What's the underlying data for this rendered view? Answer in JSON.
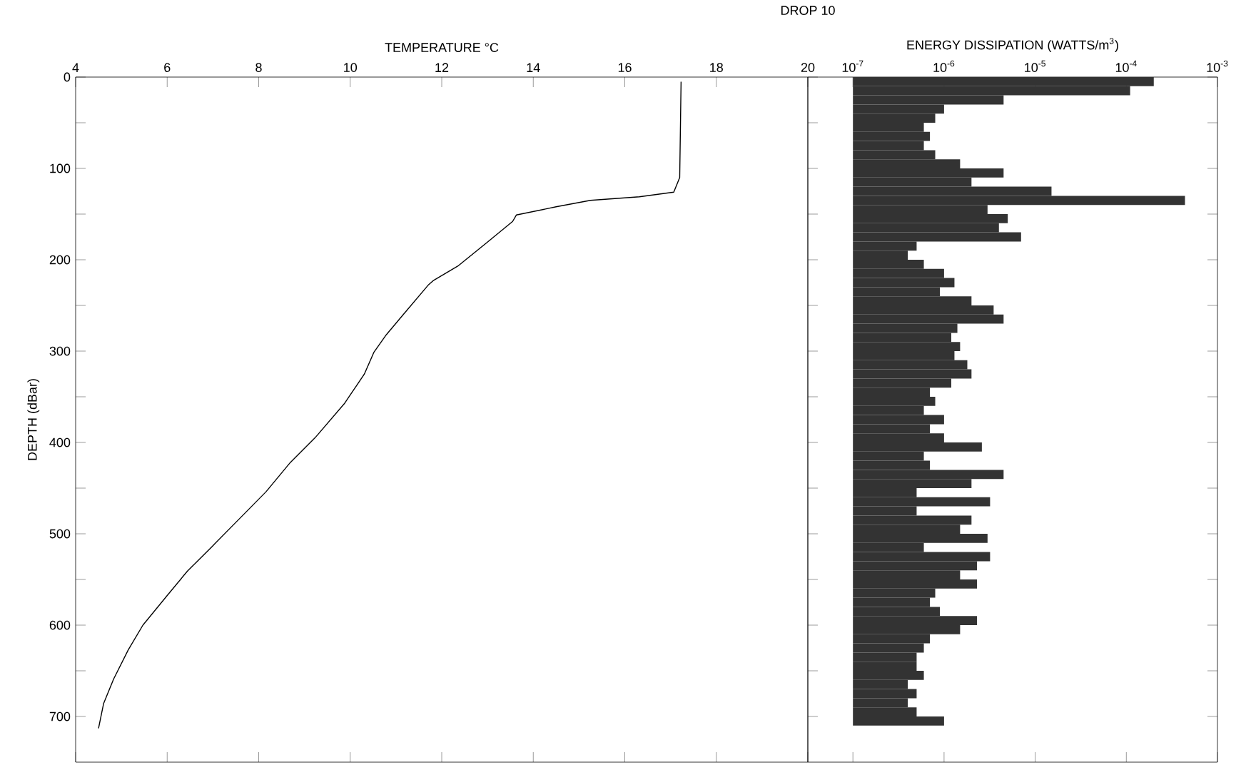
{
  "chart_data": [
    {
      "type": "line",
      "title": "DROP 10",
      "xlabel": "TEMPERATURE °C",
      "ylabel": "DEPTH (dBar)",
      "color": "#000000",
      "x": [
        17.23,
        17.2,
        17.07,
        16.32,
        15.25,
        14.5,
        13.63,
        13.55,
        12.99,
        12.35,
        11.81,
        11.7,
        11.16,
        10.79,
        10.52,
        10.31,
        9.88,
        9.23,
        8.69,
        8.16,
        7.51,
        6.98,
        6.44,
        6.01,
        5.47,
        5.15,
        4.83,
        4.61,
        4.5
      ],
      "values": [
        5,
        110,
        126,
        131,
        135,
        142,
        151,
        158,
        181,
        207,
        223,
        228,
        260,
        282,
        301,
        325,
        357,
        395,
        422,
        454,
        487,
        514,
        541,
        567,
        600,
        627,
        659,
        686,
        713
      ],
      "xlim": [
        4,
        20
      ],
      "xticks": [
        4,
        6,
        8,
        10,
        12,
        14,
        16,
        18,
        20
      ],
      "ylim": [
        750,
        0
      ],
      "yticks": [
        0,
        {
          "value": 50,
          "label": null
        },
        100,
        {
          "value": 150,
          "label": null
        },
        200,
        {
          "value": 250,
          "label": null
        },
        300,
        {
          "value": 350,
          "label": null
        },
        400,
        {
          "value": 450,
          "label": null
        },
        500,
        {
          "value": 550,
          "label": null
        },
        600,
        {
          "value": 650,
          "label": null
        },
        700
      ]
    },
    {
      "type": "bar",
      "orientation": "horizontal",
      "log": "x",
      "tick_labels": "x",
      "xlabel": "ENERGY DISSIPATION (WATTS/m$^{3}$)",
      "color": "#333333",
      "x": [
        5,
        15,
        25,
        35,
        45,
        55,
        65,
        75,
        85,
        95,
        105,
        115,
        125,
        135,
        145,
        155,
        165,
        175,
        185,
        195,
        205,
        215,
        225,
        235,
        245,
        255,
        265,
        275,
        285,
        295,
        305,
        315,
        325,
        335,
        345,
        355,
        365,
        375,
        385,
        395,
        405,
        415,
        425,
        435,
        445,
        455,
        465,
        475,
        485,
        495,
        505,
        515,
        525,
        535,
        545,
        555,
        565,
        575,
        585,
        595,
        605,
        615,
        625,
        635,
        645,
        655,
        665,
        675,
        685,
        695,
        705
      ],
      "values": [
        0.0002,
        0.00011,
        4.4e-06,
        9e-07,
        7e-07,
        5e-07,
        6e-07,
        5e-07,
        7e-07,
        1.4e-06,
        4.4e-06,
        1.9e-06,
        1.5e-05,
        0.00044,
        2.9e-06,
        4.9e-06,
        3.9e-06,
        6.9e-06,
        4e-07,
        3e-07,
        5e-07,
        9e-07,
        1.2e-06,
        8e-07,
        1.9e-06,
        3.4e-06,
        4.4e-06,
        1.3e-06,
        1.1e-06,
        1.4e-06,
        1.2e-06,
        1.7e-06,
        1.9e-06,
        1.1e-06,
        6e-07,
        7e-07,
        5e-07,
        9e-07,
        6e-07,
        9e-07,
        2.5e-06,
        5e-07,
        6e-07,
        4.4e-06,
        1.9e-06,
        4e-07,
        3.1e-06,
        4e-07,
        1.9e-06,
        1.4e-06,
        2.9e-06,
        5e-07,
        3.1e-06,
        2.2e-06,
        1.4e-06,
        2.2e-06,
        7e-07,
        6e-07,
        8e-07,
        2.2e-06,
        1.4e-06,
        6e-07,
        5e-07,
        4e-07,
        4e-07,
        5e-07,
        3e-07,
        4e-07,
        3e-07,
        4e-07,
        9e-07
      ],
      "base": [
        1e-07,
        1e-07,
        1e-07,
        1e-07,
        1e-07,
        1e-07,
        1e-07,
        1e-07,
        1e-07,
        1e-07,
        1e-07,
        1e-07,
        1e-07,
        1e-07,
        1e-07,
        1e-07,
        1e-07,
        1e-07,
        1e-07,
        1e-07,
        1e-07,
        1e-07,
        1e-07,
        1e-07,
        1e-07,
        1e-07,
        1e-07,
        1e-07,
        1e-07,
        1e-07,
        1e-07,
        1e-07,
        1e-07,
        1e-07,
        1e-07,
        1e-07,
        1e-07,
        1e-07,
        1e-07,
        1e-07,
        1e-07,
        1e-07,
        1e-07,
        1e-07,
        1e-07,
        1e-07,
        1e-07,
        1e-07,
        1e-07,
        1e-07,
        1e-07,
        1e-07,
        1e-07,
        1e-07,
        1e-07,
        1e-07,
        1e-07,
        1e-07,
        1e-07,
        1e-07,
        1e-07,
        1e-07,
        1e-07,
        1e-07,
        1e-07,
        1e-07,
        1e-07,
        1e-07,
        1e-07,
        1e-07,
        1e-07
      ],
      "xlim": [
        3.2e-08,
        0.001
      ],
      "xticks": [
        {
          "value": 1e-07,
          "label": "10$^{-7}$"
        },
        {
          "value": 1e-06,
          "label": "10$^{-6}$"
        },
        {
          "value": 1e-05,
          "label": "10$^{-5}$"
        },
        {
          "value": 0.0001,
          "label": "10$^{-4}$"
        },
        {
          "value": 0.001,
          "label": "10$^{-3}$"
        }
      ],
      "ylim": [
        750,
        0
      ],
      "yticks": [
        {
          "value": 0,
          "label": null
        },
        {
          "value": 50,
          "label": null
        },
        {
          "value": 100,
          "label": null
        },
        {
          "value": 150,
          "label": null
        },
        {
          "value": 200,
          "label": null
        },
        {
          "value": 250,
          "label": null
        },
        {
          "value": 300,
          "label": null
        },
        {
          "value": 350,
          "label": null
        },
        {
          "value": 400,
          "label": null
        },
        {
          "value": 450,
          "label": null
        },
        {
          "value": 500,
          "label": null
        },
        {
          "value": 550,
          "label": null
        },
        {
          "value": 600,
          "label": null
        },
        {
          "value": 650,
          "label": null
        },
        {
          "value": 700,
          "label": null
        }
      ]
    }
  ]
}
